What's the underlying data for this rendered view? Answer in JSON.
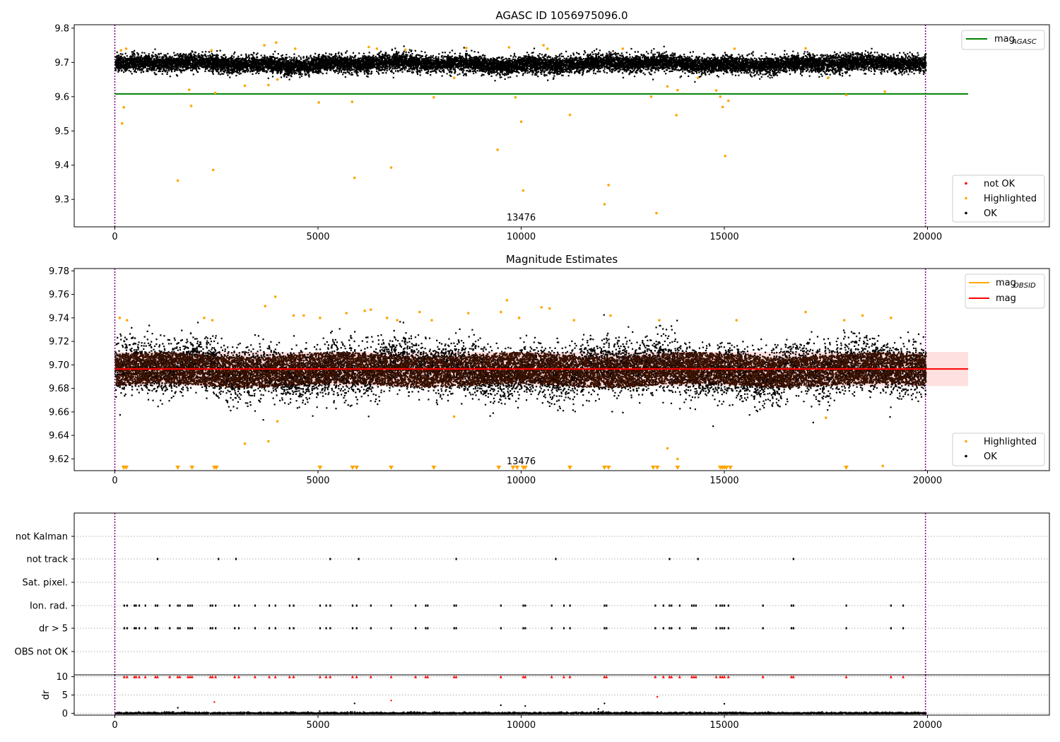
{
  "chart_data": [
    {
      "type": "scatter",
      "title": "AGASC ID 1056975096.0",
      "xlim": [
        -1000,
        23000
      ],
      "ylim": [
        9.22,
        9.81
      ],
      "xticks": [
        0,
        5000,
        10000,
        15000,
        20000
      ],
      "yticks": [
        9.3,
        9.4,
        9.5,
        9.6,
        9.7,
        9.8
      ],
      "obs_boundaries": [
        0,
        19950
      ],
      "obsid_annotation": {
        "text": "13476",
        "x": 10000
      },
      "mag_agasc": {
        "value": 9.608,
        "x_range": [
          0,
          21000
        ],
        "color": "#008000"
      },
      "ok_series": {
        "name": "OK",
        "color": "#000000",
        "x_range": [
          0,
          19950
        ],
        "center": 9.697,
        "sigma": 0.012
      },
      "highlighted_points": [
        [
          150,
          9.735
        ],
        [
          180,
          9.522
        ],
        [
          220,
          9.569
        ],
        [
          280,
          9.74
        ],
        [
          1550,
          9.355
        ],
        [
          1830,
          9.62
        ],
        [
          1880,
          9.573
        ],
        [
          2380,
          9.735
        ],
        [
          2420,
          9.386
        ],
        [
          2470,
          9.611
        ],
        [
          3200,
          9.632
        ],
        [
          3680,
          9.75
        ],
        [
          3780,
          9.634
        ],
        [
          3970,
          9.758
        ],
        [
          4000,
          9.65
        ],
        [
          4440,
          9.74
        ],
        [
          5020,
          9.583
        ],
        [
          5840,
          9.585
        ],
        [
          5900,
          9.363
        ],
        [
          6250,
          9.745
        ],
        [
          6450,
          9.74
        ],
        [
          6800,
          9.393
        ],
        [
          7150,
          9.737
        ],
        [
          7850,
          9.598
        ],
        [
          8350,
          9.655
        ],
        [
          8650,
          9.742
        ],
        [
          9420,
          9.445
        ],
        [
          9700,
          9.744
        ],
        [
          9860,
          9.598
        ],
        [
          10000,
          9.527
        ],
        [
          10050,
          9.326
        ],
        [
          10550,
          9.75
        ],
        [
          10650,
          9.74
        ],
        [
          11200,
          9.547
        ],
        [
          12050,
          9.286
        ],
        [
          12150,
          9.342
        ],
        [
          12500,
          9.74
        ],
        [
          13200,
          9.6
        ],
        [
          13330,
          9.26
        ],
        [
          13600,
          9.63
        ],
        [
          13820,
          9.546
        ],
        [
          13850,
          9.619
        ],
        [
          14350,
          9.655
        ],
        [
          14800,
          9.618
        ],
        [
          14900,
          9.6
        ],
        [
          14960,
          9.57
        ],
        [
          15020,
          9.427
        ],
        [
          15100,
          9.588
        ],
        [
          15250,
          9.74
        ],
        [
          17000,
          9.741
        ],
        [
          17550,
          9.655
        ],
        [
          18000,
          9.605
        ],
        [
          18950,
          9.615
        ]
      ],
      "legend": {
        "top_right": [
          {
            "label": "mag",
            "sub": "AGASC",
            "color": "#008000"
          }
        ],
        "bottom_right": [
          {
            "label": "not OK",
            "color": "#ff0000"
          },
          {
            "label": "Highlighted",
            "color": "#ffa500"
          },
          {
            "label": "OK",
            "color": "#000000"
          }
        ]
      }
    },
    {
      "type": "scatter",
      "title": "Magnitude Estimates",
      "xlim": [
        -1000,
        23000
      ],
      "ylim": [
        9.61,
        9.782
      ],
      "xticks": [
        0,
        5000,
        10000,
        15000,
        20000
      ],
      "yticks": [
        9.62,
        9.64,
        9.66,
        9.68,
        9.7,
        9.72,
        9.74,
        9.76,
        9.78
      ],
      "obs_boundaries": [
        0,
        19950
      ],
      "obsid_annotation": {
        "text": "13476",
        "x": 10000
      },
      "mag": {
        "value": 9.6965,
        "x_range": [
          0,
          21000
        ],
        "color": "#ff0000"
      },
      "mag_band": [
        9.682,
        9.711
      ],
      "mag_obsid": {
        "value": 9.6965,
        "color": "#ffa500"
      },
      "ok_series": {
        "name": "OK",
        "color": "#000000",
        "x_range": [
          0,
          19950
        ],
        "center": 9.696,
        "sigma": 0.011
      },
      "dense_band": {
        "color": "#3a1100",
        "range": [
          9.683,
          9.709
        ]
      },
      "highlighted_points": [
        [
          120,
          9.74
        ],
        [
          300,
          9.738
        ],
        [
          2200,
          9.74
        ],
        [
          2400,
          9.738
        ],
        [
          3200,
          9.633
        ],
        [
          3700,
          9.75
        ],
        [
          3780,
          9.635
        ],
        [
          3950,
          9.758
        ],
        [
          4000,
          9.652
        ],
        [
          4400,
          9.742
        ],
        [
          4650,
          9.742
        ],
        [
          5050,
          9.74
        ],
        [
          5700,
          9.744
        ],
        [
          6150,
          9.746
        ],
        [
          6300,
          9.747
        ],
        [
          6700,
          9.74
        ],
        [
          6950,
          9.738
        ],
        [
          7500,
          9.745
        ],
        [
          7800,
          9.738
        ],
        [
          8350,
          9.656
        ],
        [
          8700,
          9.744
        ],
        [
          9500,
          9.745
        ],
        [
          9650,
          9.755
        ],
        [
          9950,
          9.74
        ],
        [
          10500,
          9.749
        ],
        [
          10700,
          9.748
        ],
        [
          11300,
          9.738
        ],
        [
          12200,
          9.742
        ],
        [
          13400,
          9.738
        ],
        [
          13600,
          9.629
        ],
        [
          13850,
          9.62
        ],
        [
          15300,
          9.738
        ],
        [
          17000,
          9.745
        ],
        [
          17500,
          9.655
        ],
        [
          17950,
          9.738
        ],
        [
          18400,
          9.742
        ],
        [
          18900,
          9.614
        ],
        [
          19100,
          9.74
        ]
      ],
      "clipped_markers_x": [
        220,
        280,
        1550,
        1900,
        2450,
        2500,
        5050,
        5850,
        5950,
        6800,
        7850,
        9450,
        9800,
        9900,
        10050,
        10100,
        11200,
        12050,
        12150,
        13250,
        13350,
        13850,
        14900,
        14950,
        15000,
        15050,
        15150,
        18000
      ],
      "legend": {
        "top_right": [
          {
            "label": "mag",
            "sub": "OBSID",
            "color": "#ffa500"
          },
          {
            "label": "mag",
            "sub": "",
            "color": "#ff0000"
          }
        ],
        "bottom_right": [
          {
            "label": "Highlighted",
            "color": "#ffa500"
          },
          {
            "label": "OK",
            "color": "#000000"
          }
        ]
      }
    },
    {
      "type": "scatter",
      "title": "",
      "xlim": [
        -1000,
        23000
      ],
      "xticks": [
        0,
        5000,
        10000,
        15000,
        20000
      ],
      "obs_boundaries": [
        0,
        19950
      ],
      "flag_rows": [
        "not Kalman",
        "not track",
        "Sat. pixel.",
        "Ion. rad.",
        "dr > 5",
        "OBS not OK"
      ],
      "flags": {
        "not track": [
          1050,
          2550,
          2980,
          5300,
          6000,
          8400,
          10850,
          13650,
          14350,
          16700
        ],
        "Ion. rad.": [
          230,
          300,
          480,
          520,
          600,
          750,
          1000,
          1050,
          1350,
          1550,
          1600,
          1800,
          1850,
          1900,
          2350,
          2400,
          2480,
          2950,
          3050,
          3450,
          3800,
          3950,
          4300,
          4400,
          5050,
          5200,
          5300,
          5850,
          5950,
          6300,
          6800,
          7400,
          7650,
          7700,
          8350,
          8400,
          9500,
          10050,
          10100,
          10750,
          11050,
          11200,
          12050,
          12100,
          13300,
          13500,
          13650,
          13700,
          13900,
          14200,
          14250,
          14300,
          14800,
          14900,
          14950,
          15000,
          15100,
          15950,
          16650,
          16700,
          18000,
          19100,
          19400
        ],
        "dr > 5": [
          230,
          300,
          480,
          520,
          600,
          750,
          1000,
          1050,
          1350,
          1550,
          1600,
          1800,
          1850,
          1900,
          2350,
          2400,
          2480,
          2950,
          3050,
          3450,
          3800,
          3950,
          4300,
          4400,
          5050,
          5200,
          5300,
          5850,
          5950,
          6300,
          6800,
          7400,
          7650,
          7700,
          8350,
          8400,
          9500,
          10050,
          10100,
          10750,
          11050,
          11200,
          12050,
          12100,
          13300,
          13500,
          13650,
          13700,
          13900,
          14200,
          14250,
          14300,
          14800,
          14900,
          14950,
          15000,
          15100,
          15950,
          16650,
          16700,
          18000,
          19100,
          19400
        ]
      },
      "dr_panel": {
        "ylabel": "dr",
        "yticks": [
          0,
          5,
          10
        ],
        "ylim": [
          -0.5,
          10.5
        ],
        "clipped_x": [
          230,
          300,
          480,
          520,
          600,
          750,
          1000,
          1050,
          1350,
          1550,
          1600,
          1800,
          1850,
          1900,
          2350,
          2400,
          2480,
          2950,
          3050,
          3450,
          3800,
          3950,
          4300,
          4400,
          5050,
          5200,
          5300,
          5850,
          5950,
          6300,
          6800,
          7400,
          7650,
          7700,
          8350,
          8400,
          9500,
          10050,
          10100,
          10750,
          11050,
          11200,
          12050,
          12100,
          13300,
          13500,
          13650,
          13700,
          13900,
          14200,
          14250,
          14300,
          14800,
          14900,
          14950,
          15000,
          15100,
          15950,
          16650,
          16700,
          18000,
          19100,
          19400
        ],
        "outliers": [
          [
            2450,
            3.1
          ],
          [
            5900,
            2.7
          ],
          [
            6800,
            3.5
          ],
          [
            9500,
            2.2
          ],
          [
            10100,
            2.0
          ],
          [
            12050,
            2.7
          ],
          [
            13350,
            4.5
          ],
          [
            15000,
            2.6
          ],
          [
            1550,
            1.5
          ],
          [
            11900,
            1.2
          ]
        ]
      }
    }
  ]
}
